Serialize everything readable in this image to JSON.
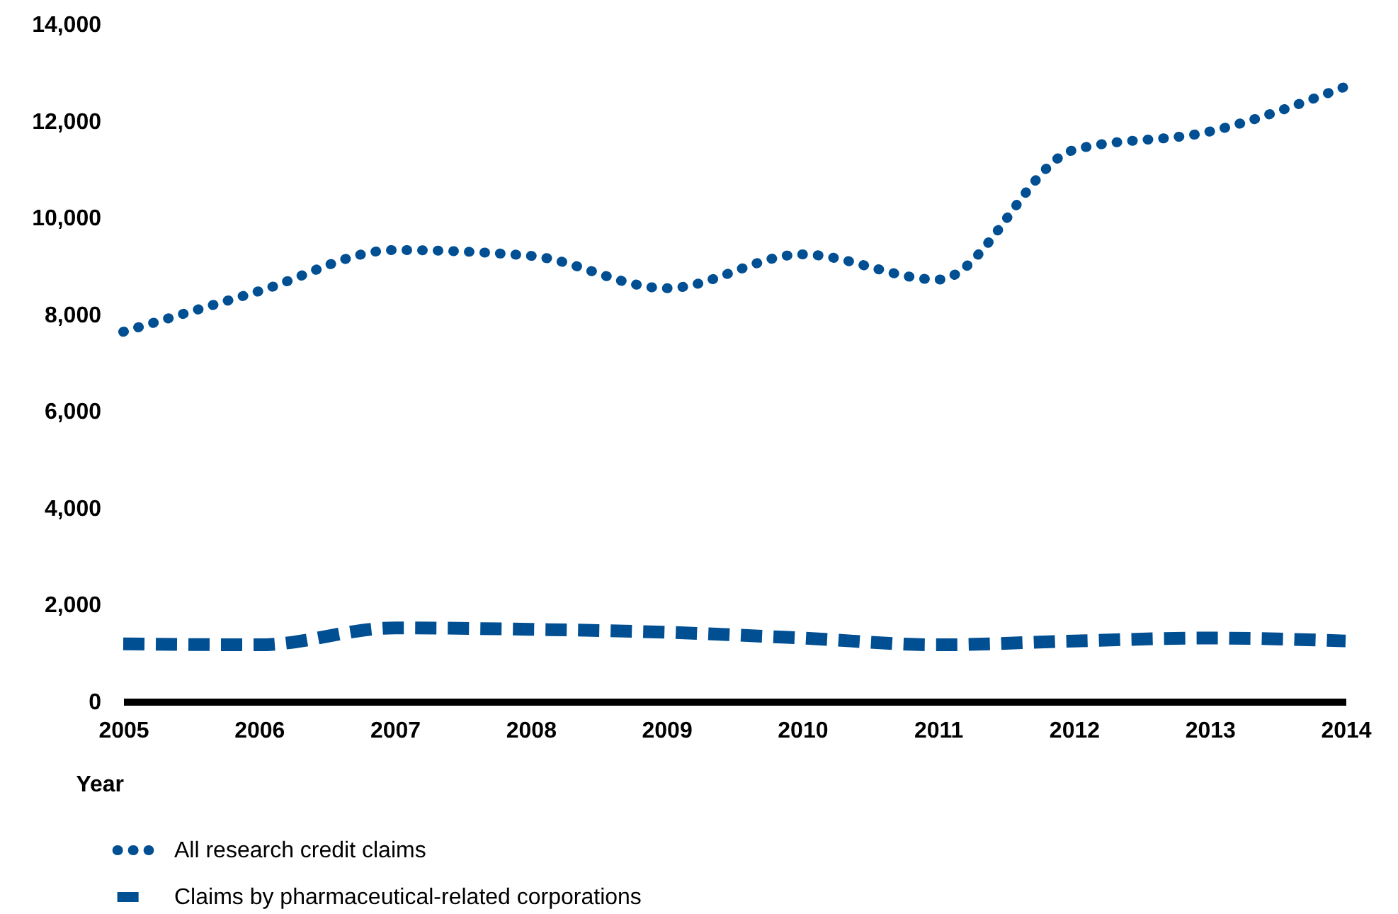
{
  "chart_data": {
    "type": "line",
    "xlabel": "Year",
    "categories": [
      "2005",
      "2006",
      "2007",
      "2008",
      "2009",
      "2010",
      "2011",
      "2012",
      "2013",
      "2014"
    ],
    "series": [
      {
        "name": "All research credit claims",
        "color": "#004f93",
        "line_style": "dotted",
        "values": [
          7640,
          8480,
          9330,
          9210,
          8540,
          9240,
          8720,
          11400,
          11780,
          12710
        ]
      },
      {
        "name": "Claims by pharmaceutical-related corporations",
        "color": "#004f93",
        "line_style": "dashed",
        "values": [
          1190,
          1170,
          1520,
          1490,
          1430,
          1310,
          1170,
          1250,
          1310,
          1250
        ]
      }
    ],
    "ylim": [
      0,
      14000
    ],
    "yticks": [
      0,
      {
        "value": 2000,
        "label": "2,000"
      },
      {
        "value": 4000,
        "label": "4,000"
      },
      {
        "value": 6000,
        "label": "6,000"
      },
      {
        "value": 8000,
        "label": "8,000"
      },
      {
        "value": 10000,
        "label": "10,000"
      },
      {
        "value": 12000,
        "label": "12,000"
      },
      {
        "value": 14000,
        "label": "14,000"
      }
    ],
    "grid": false,
    "legend": "bottom",
    "marker": "none"
  }
}
